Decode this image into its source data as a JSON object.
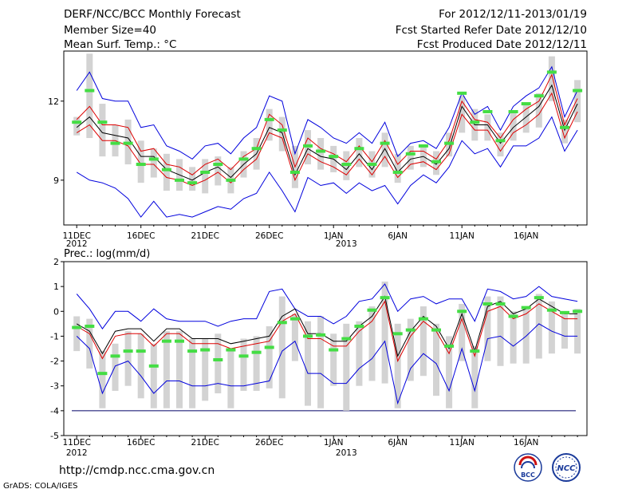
{
  "header": {
    "title": "DERF/NCC/BCC Monthly Forecast",
    "member_size": "Member Size=40",
    "variable": "Mean Surf. Temp.: °C",
    "period": "For 2012/12/11-2013/01/19",
    "refer_date": "Fcst Started Refer Date 2012/12/10",
    "produced_date": "Fcst Produced Date 2012/12/11"
  },
  "footer": {
    "url": "http://cmdp.ncc.cma.gov.cn",
    "grads": "GrADS: COLA/IGES",
    "logo1_text": "BCC",
    "logo2_text": "NCC"
  },
  "colors": {
    "envelope": "#0000dd",
    "spread": "#dd0000",
    "mean": "#000000",
    "median": "#44dd44",
    "box": "#d3d3d3",
    "threshold": "#000066"
  },
  "chart_data": [
    {
      "type": "box",
      "title": "Mean Surf. Temp.: °C",
      "x_ticks": [
        "11DEC",
        "16DEC",
        "21DEC",
        "26DEC",
        "1JAN",
        "6JAN",
        "11JAN",
        "16JAN"
      ],
      "x_year_labels": [
        "2012",
        "2013"
      ],
      "y_ticks": [
        9,
        12
      ],
      "ylim": [
        7.3,
        13.9
      ],
      "days": 40,
      "series": [
        {
          "name": "max",
          "values": [
            12.4,
            13.1,
            12.1,
            12.0,
            12.0,
            11.0,
            11.1,
            10.3,
            10.1,
            9.8,
            10.3,
            10.4,
            10.0,
            10.6,
            11.0,
            12.2,
            12.0,
            10.0,
            11.3,
            11.0,
            10.6,
            10.4,
            10.8,
            10.4,
            11.2,
            9.9,
            10.4,
            10.5,
            10.2,
            11.0,
            12.3,
            11.5,
            11.8,
            10.9,
            11.8,
            12.2,
            12.5,
            13.3,
            11.4,
            12.4
          ]
        },
        {
          "name": "upper",
          "values": [
            11.3,
            11.8,
            11.1,
            11.1,
            11.0,
            10.1,
            10.2,
            9.6,
            9.5,
            9.2,
            9.6,
            9.8,
            9.4,
            9.9,
            10.2,
            11.5,
            11.1,
            9.5,
            10.6,
            10.2,
            10.0,
            9.7,
            10.3,
            9.7,
            10.5,
            9.6,
            10.1,
            10.1,
            9.8,
            10.5,
            12.0,
            11.3,
            11.2,
            10.6,
            11.3,
            11.7,
            12.0,
            13.0,
            11.1,
            12.1
          ]
        },
        {
          "name": "mean",
          "values": [
            11.0,
            11.4,
            10.8,
            10.7,
            10.6,
            9.9,
            9.9,
            9.4,
            9.2,
            9.0,
            9.3,
            9.5,
            9.1,
            9.6,
            10.0,
            11.0,
            10.8,
            9.2,
            10.2,
            9.9,
            9.8,
            9.4,
            10.0,
            9.4,
            10.2,
            9.3,
            9.8,
            9.9,
            9.6,
            10.2,
            11.8,
            11.1,
            11.1,
            10.4,
            11.0,
            11.4,
            11.8,
            12.6,
            10.9,
            11.9
          ]
        },
        {
          "name": "lower",
          "values": [
            10.8,
            11.1,
            10.5,
            10.5,
            10.3,
            9.6,
            9.6,
            9.1,
            9.0,
            8.8,
            9.0,
            9.3,
            8.9,
            9.4,
            9.8,
            10.8,
            10.6,
            9.0,
            10.0,
            9.7,
            9.5,
            9.2,
            9.8,
            9.2,
            9.9,
            9.1,
            9.6,
            9.7,
            9.4,
            10.0,
            11.5,
            10.9,
            10.9,
            10.1,
            10.8,
            11.1,
            11.5,
            12.3,
            10.6,
            11.6
          ]
        },
        {
          "name": "min",
          "values": [
            9.3,
            9.0,
            8.9,
            8.7,
            8.3,
            7.6,
            8.2,
            7.6,
            7.7,
            7.6,
            7.8,
            8.0,
            7.9,
            8.3,
            8.5,
            9.3,
            8.6,
            7.8,
            9.1,
            8.8,
            8.9,
            8.5,
            8.9,
            8.6,
            8.8,
            8.1,
            8.8,
            9.2,
            8.9,
            9.5,
            10.5,
            10.0,
            10.2,
            9.5,
            10.3,
            10.3,
            10.6,
            11.4,
            10.1,
            10.9
          ]
        },
        {
          "name": "box_low",
          "values": [
            10.7,
            10.6,
            9.9,
            9.9,
            9.6,
            8.9,
            9.1,
            8.6,
            8.6,
            8.6,
            8.5,
            8.8,
            8.5,
            9.1,
            9.4,
            10.5,
            10.1,
            8.7,
            9.6,
            9.4,
            9.3,
            9.0,
            9.5,
            9.1,
            9.5,
            8.9,
            9.4,
            9.5,
            9.2,
            9.9,
            10.8,
            10.5,
            10.5,
            9.9,
            10.5,
            10.8,
            11.0,
            12.0,
            10.4,
            11.2
          ]
        },
        {
          "name": "box_high",
          "values": [
            11.4,
            13.8,
            11.9,
            11.1,
            11.3,
            10.5,
            10.2,
            10.0,
            9.8,
            9.5,
            9.8,
            9.9,
            9.5,
            10.1,
            10.6,
            11.7,
            11.4,
            10.3,
            10.9,
            10.6,
            10.3,
            10.1,
            10.6,
            10.1,
            10.8,
            10.0,
            10.3,
            10.3,
            10.1,
            10.8,
            12.2,
            11.7,
            11.5,
            10.8,
            11.6,
            11.9,
            12.3,
            13.7,
            11.3,
            12.8
          ]
        },
        {
          "name": "median",
          "values": [
            11.2,
            12.4,
            11.2,
            10.4,
            10.4,
            9.6,
            9.8,
            9.4,
            9.0,
            8.9,
            9.3,
            9.6,
            9.0,
            9.8,
            10.2,
            11.3,
            10.9,
            9.3,
            10.3,
            10.1,
            9.9,
            9.6,
            10.2,
            9.6,
            10.4,
            9.3,
            10.0,
            10.3,
            9.7,
            10.4,
            12.3,
            11.2,
            11.6,
            10.5,
            11.6,
            11.9,
            12.2,
            13.1,
            11.0,
            12.4
          ]
        }
      ]
    },
    {
      "type": "box",
      "title": "Prec.: log(mm/d)",
      "x_ticks": [
        "11DEC",
        "16DEC",
        "21DEC",
        "26DEC",
        "1JAN",
        "6JAN",
        "11JAN",
        "16JAN"
      ],
      "x_year_labels": [
        "2012",
        "2013"
      ],
      "y_ticks": [
        2,
        1,
        0,
        -1,
        -2,
        -3,
        -4,
        -5
      ],
      "ylim": [
        -5,
        2
      ],
      "threshold": -4,
      "days": 40,
      "series": [
        {
          "name": "max",
          "values": [
            0.7,
            0.1,
            -0.7,
            0.0,
            0.0,
            -0.4,
            0.1,
            -0.3,
            -0.4,
            -0.4,
            -0.4,
            -0.6,
            -0.4,
            -0.3,
            -0.3,
            0.8,
            0.9,
            0.1,
            -0.2,
            -0.2,
            -0.5,
            -0.2,
            0.4,
            0.5,
            1.1,
            0.0,
            0.5,
            0.6,
            0.3,
            0.5,
            0.5,
            -0.4,
            0.9,
            0.8,
            0.5,
            0.6,
            1.0,
            0.6,
            0.5,
            0.4
          ]
        },
        {
          "name": "mean",
          "values": [
            -0.5,
            -0.8,
            -1.7,
            -0.8,
            -0.7,
            -0.7,
            -1.2,
            -0.7,
            -0.7,
            -1.1,
            -1.1,
            -1.1,
            -1.3,
            -1.2,
            -1.1,
            -1.0,
            -0.2,
            0.1,
            -0.9,
            -0.9,
            -1.2,
            -1.2,
            -0.6,
            -0.2,
            0.6,
            -1.8,
            -0.8,
            -0.2,
            -0.6,
            -1.5,
            -0.1,
            -1.6,
            0.2,
            0.4,
            -0.1,
            0.1,
            0.5,
            0.2,
            -0.1,
            -0.1
          ]
        },
        {
          "name": "median_line",
          "values": [
            -0.6,
            -0.9,
            -1.9,
            -1.0,
            -0.9,
            -0.9,
            -1.4,
            -0.9,
            -0.9,
            -1.3,
            -1.3,
            -1.3,
            -1.5,
            -1.4,
            -1.3,
            -1.2,
            -0.4,
            -0.1,
            -1.1,
            -1.1,
            -1.4,
            -1.4,
            -0.8,
            -0.4,
            0.4,
            -2.0,
            -1.0,
            -0.4,
            -0.8,
            -1.7,
            -0.3,
            -1.8,
            0.0,
            0.2,
            -0.3,
            -0.1,
            0.3,
            0.0,
            -0.3,
            -0.3
          ]
        },
        {
          "name": "min",
          "values": [
            -1.0,
            -1.5,
            -3.3,
            -2.2,
            -2.0,
            -2.6,
            -3.3,
            -2.8,
            -2.8,
            -3.0,
            -3.0,
            -2.9,
            -3.0,
            -3.0,
            -2.9,
            -2.8,
            -1.6,
            -1.2,
            -2.5,
            -2.5,
            -2.9,
            -2.9,
            -2.3,
            -1.9,
            -1.2,
            -3.7,
            -2.3,
            -1.7,
            -2.1,
            -3.2,
            -1.5,
            -3.2,
            -1.1,
            -1.0,
            -1.4,
            -1.0,
            -0.5,
            -0.8,
            -1.0,
            -1.0
          ]
        },
        {
          "name": "box_low",
          "values": [
            -1.6,
            -2.3,
            -3.9,
            -3.2,
            -3.0,
            -3.5,
            -3.9,
            -3.9,
            -3.9,
            -3.9,
            -3.6,
            -3.3,
            -3.9,
            -3.2,
            -3.2,
            -3.1,
            -3.5,
            -2.0,
            -3.8,
            -3.9,
            -3.0,
            -4.0,
            -3.0,
            -2.8,
            -2.9,
            -3.9,
            -2.8,
            -2.6,
            -3.4,
            -3.9,
            -2.0,
            -3.9,
            -2.0,
            -2.2,
            -2.1,
            -2.1,
            -1.9,
            -1.7,
            -1.5,
            -1.7
          ]
        },
        {
          "name": "box_high",
          "values": [
            -0.2,
            -0.3,
            -1.6,
            -1.3,
            -0.8,
            -0.9,
            -1.3,
            -0.8,
            -0.8,
            -1.1,
            -1.1,
            -0.9,
            -1.5,
            -1.1,
            -1.0,
            -0.6,
            0.6,
            -0.1,
            -0.4,
            -0.2,
            -0.9,
            -0.5,
            -0.4,
            0.2,
            1.2,
            -0.5,
            -0.3,
            0.2,
            -0.5,
            -1.0,
            0.3,
            -1.4,
            0.6,
            0.6,
            0.0,
            0.2,
            0.7,
            0.4,
            0.0,
            0.1
          ]
        },
        {
          "name": "median",
          "values": [
            -0.65,
            -0.6,
            -2.5,
            -1.8,
            -1.6,
            -1.6,
            -2.2,
            -1.2,
            -1.2,
            -1.6,
            -1.55,
            -1.95,
            -1.55,
            -1.8,
            -1.65,
            -1.45,
            -0.45,
            -0.3,
            -1.0,
            -0.95,
            -1.55,
            -1.1,
            -0.6,
            0.05,
            0.55,
            -0.9,
            -0.75,
            -0.3,
            -0.75,
            -1.4,
            0.0,
            -1.6,
            0.3,
            0.3,
            -0.2,
            0.15,
            0.55,
            0.05,
            -0.05,
            0.0
          ]
        }
      ]
    }
  ]
}
